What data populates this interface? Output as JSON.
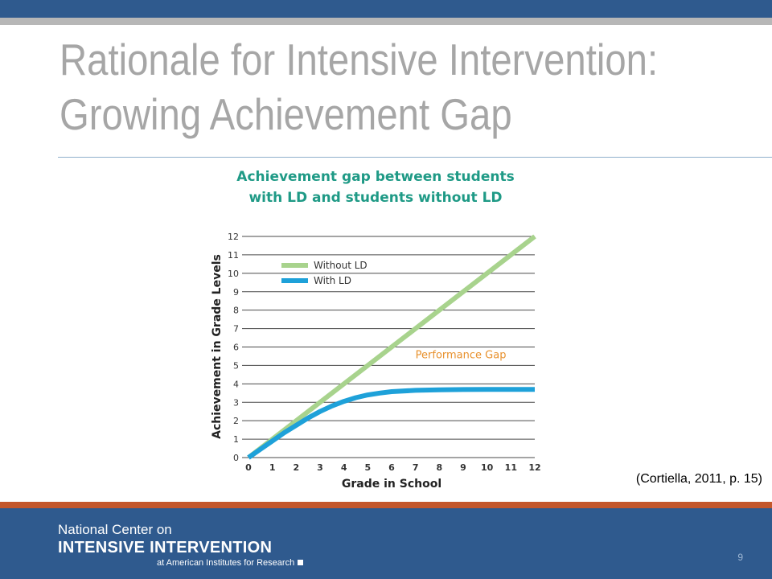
{
  "slide": {
    "title_line1": "Rationale for Intensive Intervention:",
    "title_line2": "Growing Achievement Gap",
    "citation": "(Cortiella, 2011, p. 15)",
    "page_number": "9"
  },
  "footer": {
    "org_line1": "National Center on",
    "org_line2": "INTENSIVE INTERVENTION",
    "org_line3": "at American Institutes for Research"
  },
  "colors": {
    "header_blue": "#2f5a8e",
    "accent_orange": "#c4572b",
    "title_gray": "#a6a6a6",
    "chart_title_teal": "#1f9a86",
    "series_without_ld": "#a8d38d",
    "series_with_ld": "#1ea1d9",
    "annotation_orange": "#e8912d"
  },
  "chart_data": {
    "type": "line",
    "title_line1": "Achievement gap between students",
    "title_line2": "with LD and students without LD",
    "xlabel": "Grade in School",
    "ylabel": "Achievement in Grade Levels",
    "xlim": [
      0,
      12
    ],
    "ylim": [
      0,
      12
    ],
    "x_ticks": [
      "0",
      "1",
      "2",
      "3",
      "4",
      "5",
      "6",
      "7",
      "8",
      "9",
      "10",
      "11",
      "12"
    ],
    "y_ticks": [
      "0",
      "1",
      "2",
      "3",
      "4",
      "5",
      "6",
      "7",
      "8",
      "9",
      "10",
      "11",
      "12"
    ],
    "grid": "horizontal",
    "legend": "top-left",
    "series": [
      {
        "name": "Without LD",
        "x": [
          0,
          12
        ],
        "y": [
          0,
          12
        ]
      },
      {
        "name": "With LD",
        "x": [
          0,
          0.5,
          1,
          1.5,
          2,
          2.5,
          3,
          3.5,
          4,
          4.5,
          5,
          5.5,
          6,
          7,
          8,
          9,
          10,
          11,
          12
        ],
        "y": [
          0,
          0.45,
          0.9,
          1.35,
          1.75,
          2.15,
          2.5,
          2.8,
          3.05,
          3.25,
          3.4,
          3.5,
          3.58,
          3.65,
          3.68,
          3.69,
          3.7,
          3.7,
          3.7
        ]
      }
    ],
    "annotations": [
      {
        "text": "Performance Gap",
        "x": 7.0,
        "y": 5.4
      }
    ]
  }
}
